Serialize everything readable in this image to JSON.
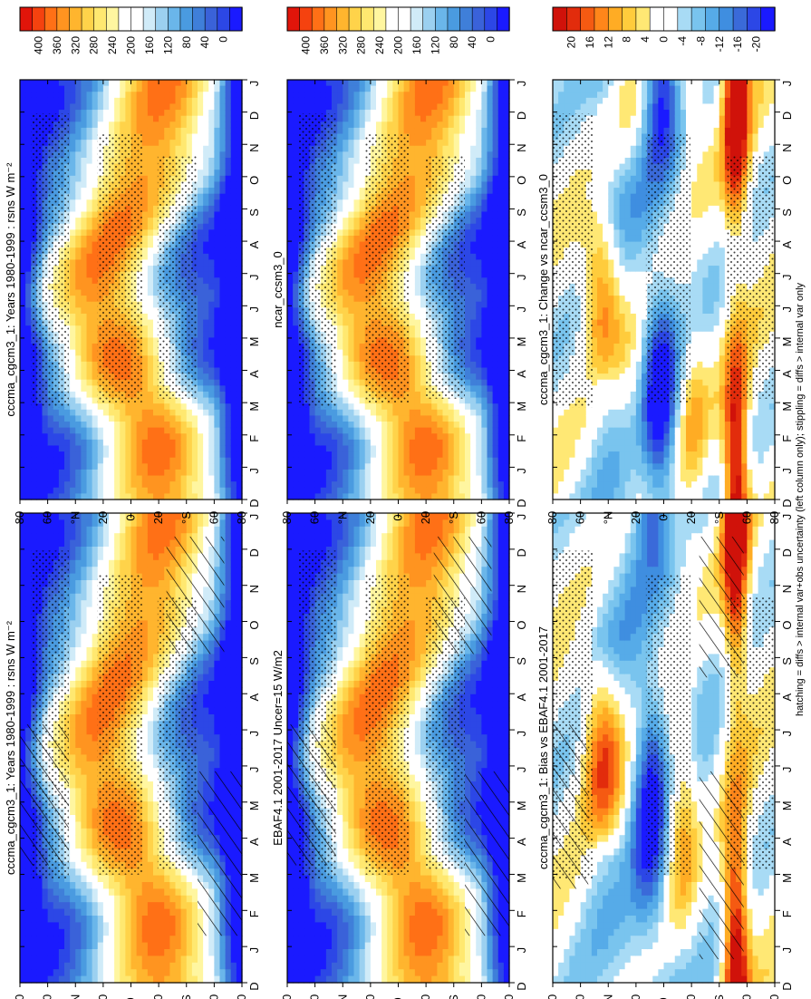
{
  "footnote": "hatching = diffs > internal var+obs uncertainty (left column only); stippling = diffs > internal var only",
  "colors": {
    "abs_scale": [
      "#1a1aff",
      "#2c47e6",
      "#3a62d9",
      "#3f7fd9",
      "#4a9be0",
      "#6ab6ea",
      "#9bd0f0",
      "#d0ebf8",
      "#ffffff",
      "#ffffff",
      "#fff6a0",
      "#ffe870",
      "#ffd34a",
      "#ffb52e",
      "#ff9420",
      "#ff7016",
      "#f5420f",
      "#e1150a"
    ],
    "diff_scale": [
      "#1a1aff",
      "#2c47e6",
      "#3a6ad9",
      "#3f8ee0",
      "#56abe8",
      "#79c4ee",
      "#a8dbf5",
      "#ffffff",
      "#ffffff",
      "#ffe874",
      "#ffcc3c",
      "#ffac24",
      "#ff861a",
      "#f55a12",
      "#e22c0c",
      "#d0120a"
    ],
    "hatch": "#000000"
  },
  "chart_data": [
    {
      "type": "heatmap",
      "id": "model_left",
      "title": "cccma_cgcm3_1: Years 1980-1999 : rsns W m⁻²",
      "x_ticks": [
        "D",
        "J",
        "F",
        "M",
        "A",
        "M",
        "J",
        "J",
        "A",
        "S",
        "O",
        "N",
        "D",
        "J"
      ],
      "y_ticks": [
        "80",
        "60",
        "°N",
        "20",
        "0",
        "20",
        "°S",
        "60",
        "80"
      ],
      "colorbar_ticks": [
        "400",
        "360",
        "320",
        "280",
        "240",
        "200",
        "160",
        "120",
        "80",
        "40",
        "0"
      ],
      "value_range": [
        0,
        400
      ],
      "units": "W m-2",
      "hatching": true,
      "stippling": true
    },
    {
      "type": "heatmap",
      "id": "model_right",
      "title": "cccma_cgcm3_1: Years 1980-1999 : rsns W m⁻²",
      "x_ticks": [
        "D",
        "J",
        "F",
        "M",
        "A",
        "M",
        "J",
        "J",
        "A",
        "S",
        "O",
        "N",
        "D",
        "J"
      ],
      "y_ticks": [
        "80",
        "60",
        "°N",
        "20",
        "0",
        "20",
        "°S",
        "60",
        "80"
      ],
      "colorbar_ticks": [
        "400",
        "360",
        "320",
        "280",
        "240",
        "200",
        "160",
        "120",
        "80",
        "40",
        "0"
      ],
      "value_range": [
        0,
        400
      ],
      "units": "W m-2",
      "hatching": false,
      "stippling": true
    },
    {
      "type": "heatmap",
      "id": "obs_left",
      "title": "EBAF4.1 2001-2017 Uncer=15 W/m2",
      "x_ticks": [
        "D",
        "J",
        "F",
        "M",
        "A",
        "M",
        "J",
        "J",
        "A",
        "S",
        "O",
        "N",
        "D",
        "J"
      ],
      "y_ticks": [
        "80",
        "60",
        "°N",
        "20",
        "0",
        "20",
        "°S",
        "60",
        "80"
      ],
      "colorbar_ticks": [
        "400",
        "360",
        "320",
        "280",
        "240",
        "200",
        "160",
        "120",
        "80",
        "40",
        "0"
      ],
      "value_range": [
        0,
        400
      ],
      "units": "W m-2",
      "hatching": true,
      "stippling": true
    },
    {
      "type": "heatmap",
      "id": "ref_right",
      "title": "ncar_ccsm3_0",
      "x_ticks": [
        "D",
        "J",
        "F",
        "M",
        "A",
        "M",
        "J",
        "J",
        "A",
        "S",
        "O",
        "N",
        "D",
        "J"
      ],
      "y_ticks": [
        "80",
        "60",
        "°N",
        "20",
        "0",
        "20",
        "°S",
        "60",
        "80"
      ],
      "colorbar_ticks": [
        "400",
        "360",
        "320",
        "280",
        "240",
        "200",
        "160",
        "120",
        "80",
        "40",
        "0"
      ],
      "value_range": [
        0,
        400
      ],
      "units": "W m-2",
      "hatching": false,
      "stippling": true
    },
    {
      "type": "heatmap",
      "id": "bias_left",
      "title": "cccma_cgcm3_1: Bias vs EBAF4.1 2001-2017",
      "x_ticks": [
        "D",
        "J",
        "F",
        "M",
        "A",
        "M",
        "J",
        "J",
        "A",
        "S",
        "O",
        "N",
        "D",
        "J"
      ],
      "y_ticks": [
        "80",
        "60",
        "°N",
        "20",
        "0",
        "20",
        "°S",
        "60",
        "80"
      ],
      "colorbar_ticks": [
        "20",
        "16",
        "12",
        "8",
        "4",
        "0",
        "-4",
        "-8",
        "-12",
        "-16",
        "-20"
      ],
      "value_range": [
        -20,
        20
      ],
      "units": "W m-2",
      "hatching": true,
      "stippling": true
    },
    {
      "type": "heatmap",
      "id": "change_right",
      "title": "cccma_cgcm3_1: Change vs ncar_ccsm3_0",
      "x_ticks": [
        "D",
        "J",
        "F",
        "M",
        "A",
        "M",
        "J",
        "J",
        "A",
        "S",
        "O",
        "N",
        "D",
        "J"
      ],
      "y_ticks": [
        "80",
        "60",
        "°N",
        "20",
        "0",
        "20",
        "°S",
        "60",
        "80"
      ],
      "colorbar_ticks": [
        "20",
        "16",
        "12",
        "8",
        "4",
        "0",
        "-4",
        "-8",
        "-12",
        "-16",
        "-20"
      ],
      "value_range": [
        -20,
        20
      ],
      "units": "W m-2",
      "hatching": false,
      "stippling": true
    }
  ]
}
